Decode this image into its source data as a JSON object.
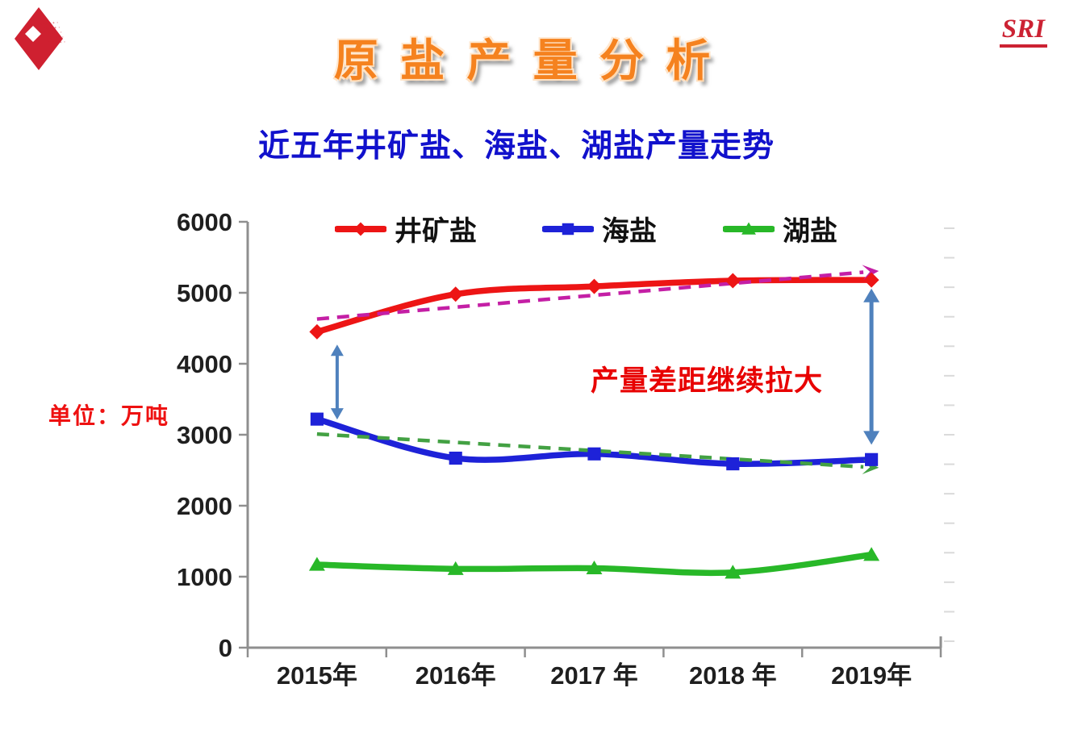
{
  "header": {
    "title": "原 盐 产 量 分 析",
    "brand": "SRI"
  },
  "subtitle": "近五年井矿盐、海盐、湖盐产量走势",
  "unit_label": "单位：万吨",
  "annotation_text": "产量差距继续拉大",
  "colors": {
    "title_orange": "#f5821f",
    "subtitle_blue": "#1111cc",
    "brand_red": "#cc2233",
    "red_text": "#e80000",
    "logo_red": "#cf2030",
    "axis_gray": "#8f8f8f",
    "faint_tick_gray": "#dadada",
    "tick_label_color": "#1f1f1f",
    "gap_arrow_blue": "#4f81bd"
  },
  "chart_data": {
    "type": "line",
    "title": "近五年井矿盐、海盐、湖盐产量走势",
    "unit": "万吨",
    "categories": [
      "2015年",
      "2016年",
      "2017 年",
      "2018 年",
      "2019年"
    ],
    "series": [
      {
        "name": "井矿盐",
        "color": "#ed1515",
        "marker": "diamond",
        "values": [
          4450,
          4980,
          5090,
          5170,
          5180
        ]
      },
      {
        "name": "海盐",
        "color": "#1e22d8",
        "marker": "square",
        "values": [
          3220,
          2670,
          2730,
          2590,
          2650
        ]
      },
      {
        "name": "湖盐",
        "color": "#28b828",
        "marker": "triangle",
        "values": [
          1170,
          1110,
          1120,
          1060,
          1310
        ]
      }
    ],
    "trendlines": [
      {
        "series": "井矿盐",
        "color": "#c41fa5",
        "style": "dashed-arrow",
        "start_value": 4630,
        "end_value": 5300
      },
      {
        "series": "海盐",
        "color": "#43a143",
        "style": "dashed-arrow",
        "start_value": 3010,
        "end_value": 2540
      }
    ],
    "gap_arrows": [
      {
        "category_index": 0,
        "x_offset": 25,
        "from_value": 3215,
        "to_value": 4270
      },
      {
        "category_index": 4,
        "x_offset": 0,
        "from_value": 2860,
        "to_value": 5060
      }
    ],
    "y_ticks": [
      0,
      1000,
      2000,
      3000,
      4000,
      5000,
      6000
    ],
    "ylim": [
      0,
      6000
    ],
    "legend_position": "top",
    "grid": false
  }
}
